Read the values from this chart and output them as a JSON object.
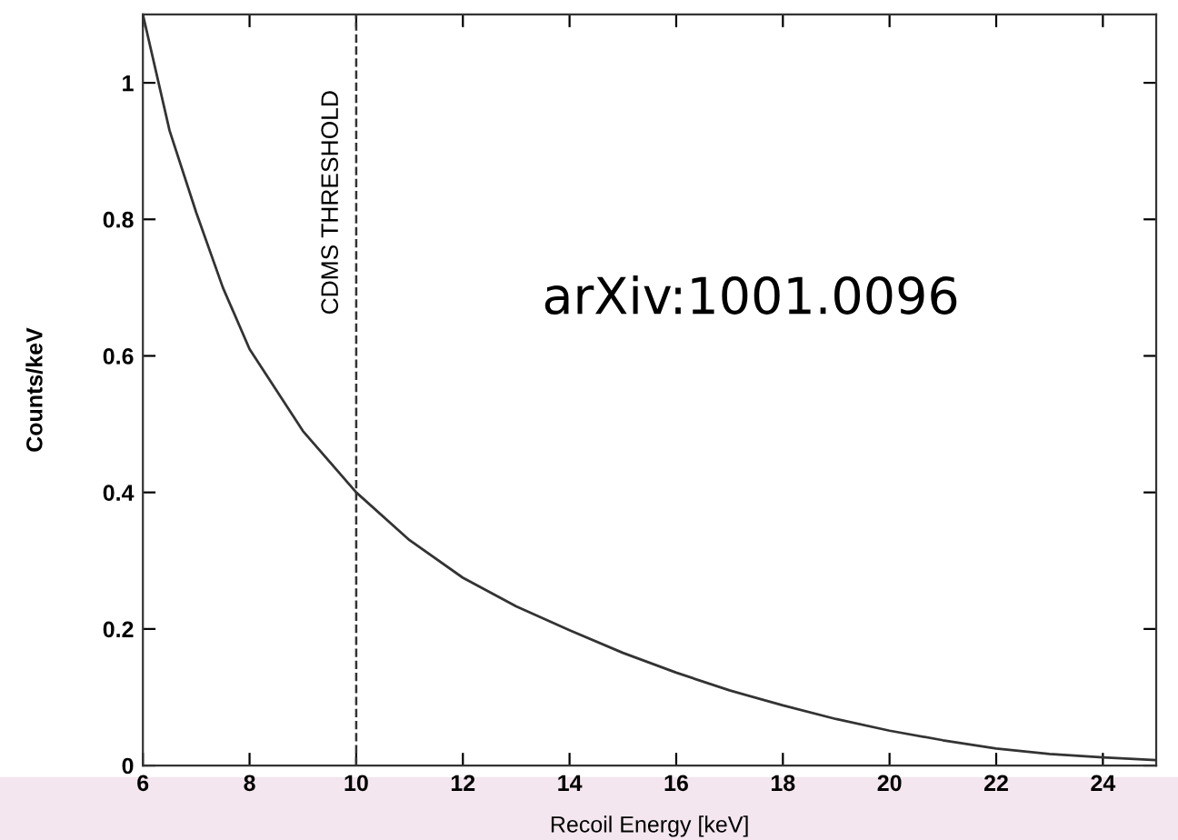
{
  "chart_data": {
    "type": "line",
    "xlabel": "Recoil Energy [keV]",
    "ylabel": "Counts/keV",
    "x": [
      6,
      6.5,
      7,
      7.5,
      8,
      9,
      10,
      11,
      12,
      13,
      14,
      15,
      16,
      17,
      18,
      19,
      20,
      21,
      22,
      23,
      24,
      25
    ],
    "series": [
      {
        "color": "#333333",
        "values": [
          1.1,
          0.93,
          0.81,
          0.7,
          0.61,
          0.49,
          0.4,
          0.33,
          0.275,
          0.233,
          0.198,
          0.165,
          0.136,
          0.11,
          0.088,
          0.068,
          0.051,
          0.037,
          0.025,
          0.017,
          0.012,
          0.008
        ]
      }
    ],
    "xlim": [
      6,
      25
    ],
    "ylim": [
      0,
      1.1
    ],
    "xticks": [
      6,
      8,
      10,
      12,
      14,
      16,
      18,
      20,
      22,
      24
    ],
    "yticks": [
      0,
      0.2,
      0.4,
      0.6,
      0.8,
      1
    ],
    "ref_lines": [
      {
        "axis": "x",
        "value": 10,
        "label": "CDMS THRESHOLD",
        "color": "#333333",
        "line_style": "dashed"
      }
    ],
    "annotations": [
      "arXiv:1001.0096"
    ],
    "grid": false,
    "marker": "none",
    "line_style": "solid"
  }
}
